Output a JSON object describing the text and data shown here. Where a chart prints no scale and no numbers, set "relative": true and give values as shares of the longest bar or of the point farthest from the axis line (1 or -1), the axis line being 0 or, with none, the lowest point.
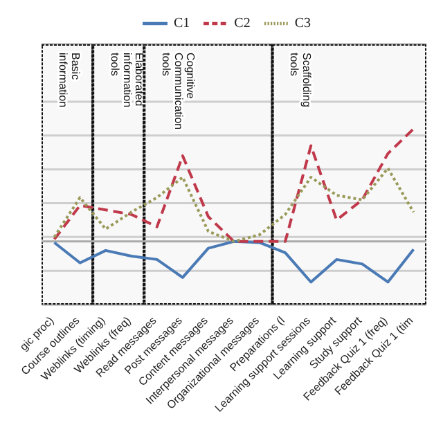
{
  "chart_data": {
    "type": "line",
    "relative": true,
    "grid": "y",
    "legend": "top",
    "categories": [
      "gic proc)",
      "Course outlines",
      "Weblinks (timing)",
      "Weblinks (freq)",
      "Read messages",
      "Post messages",
      "Content messages",
      "Interpersonal messages",
      "Organizational messages",
      "Preparations (l",
      "Learning support sessions",
      "Learning support",
      "Study support",
      "Feedback Quiz 1 (freq)",
      "Feedback Quiz 1 (tim"
    ],
    "series": [
      {
        "name": "C1",
        "color": "#4a7ab5",
        "line_style": "solid",
        "values": [
          -0.01,
          -0.19,
          -0.08,
          -0.13,
          -0.16,
          -0.32,
          -0.06,
          0,
          -0.01,
          -0.1,
          -0.36,
          -0.16,
          -0.2,
          -0.36,
          -0.07
        ]
      },
      {
        "name": "C2",
        "color": "#c0394b",
        "line_style": "dashed",
        "values": [
          0.02,
          0.32,
          0.28,
          0.24,
          0.13,
          0.76,
          0.22,
          0,
          0,
          0,
          0.85,
          0.19,
          0.37,
          0.78,
          1
        ]
      },
      {
        "name": "C3",
        "color": "#9a9a5a",
        "line_style": "dotted",
        "values": [
          0.04,
          0.39,
          0.11,
          0.26,
          0.39,
          0.57,
          0.09,
          0,
          0.06,
          0.24,
          0.57,
          0.41,
          0.37,
          0.65,
          0.26
        ]
      }
    ],
    "bands": [
      {
        "axis": "x",
        "from": "gic proc)",
        "to": "Course outlines",
        "label": "Basic information",
        "color": "#f2f2f2"
      },
      {
        "axis": "x",
        "from": "Weblinks (timing)",
        "to": "Weblinks (freq)",
        "label": "Elaborated information tools",
        "color": "#f2f2f2"
      },
      {
        "axis": "x",
        "from": "Read messages",
        "to": "Organizational messages",
        "label": "Cognitive Communication tools",
        "color": "#f2f2f2"
      },
      {
        "axis": "x",
        "from": "Preparations (l",
        "to": "Feedback Quiz 1 (tim",
        "label": "Scaffolding tools",
        "color": "#f2f2f2"
      }
    ]
  }
}
